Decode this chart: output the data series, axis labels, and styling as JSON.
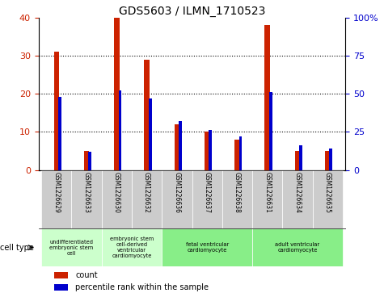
{
  "title": "GDS5603 / ILMN_1710523",
  "samples": [
    "GSM1226629",
    "GSM1226633",
    "GSM1226630",
    "GSM1226632",
    "GSM1226636",
    "GSM1226637",
    "GSM1226638",
    "GSM1226631",
    "GSM1226634",
    "GSM1226635"
  ],
  "counts": [
    31,
    5,
    40,
    29,
    12,
    10,
    8,
    38,
    5,
    5
  ],
  "percentiles": [
    48,
    12,
    52,
    47,
    32,
    26,
    22,
    51,
    16,
    14
  ],
  "ylim_left": [
    0,
    40
  ],
  "ylim_right": [
    0,
    100
  ],
  "yticks_left": [
    0,
    10,
    20,
    30,
    40
  ],
  "yticks_right": [
    0,
    25,
    50,
    75,
    100
  ],
  "ytick_labels_right": [
    "0",
    "25",
    "50",
    "75",
    "100%"
  ],
  "bar_color": "#cc2200",
  "percentile_color": "#0000cc",
  "groups": [
    {
      "start": 0,
      "end": 1,
      "label": "undifferentiated\nembryonic stem\ncell",
      "color": "#ccffcc"
    },
    {
      "start": 2,
      "end": 3,
      "label": "embryonic stem\ncell-derived\nventricular\ncardiomyocyte",
      "color": "#ccffcc"
    },
    {
      "start": 4,
      "end": 6,
      "label": "fetal ventricular\ncardiomyocyte",
      "color": "#88ee88"
    },
    {
      "start": 7,
      "end": 9,
      "label": "adult ventricular\ncardiomyocyte",
      "color": "#88ee88"
    }
  ],
  "cell_type_label": "cell type",
  "legend_count_label": "count",
  "legend_percentile_label": "percentile rank within the sample",
  "tick_color_left": "#cc2200",
  "tick_color_right": "#0000cc",
  "sample_box_color": "#cccccc",
  "bar_width": 0.18,
  "pct_bar_width": 0.1
}
